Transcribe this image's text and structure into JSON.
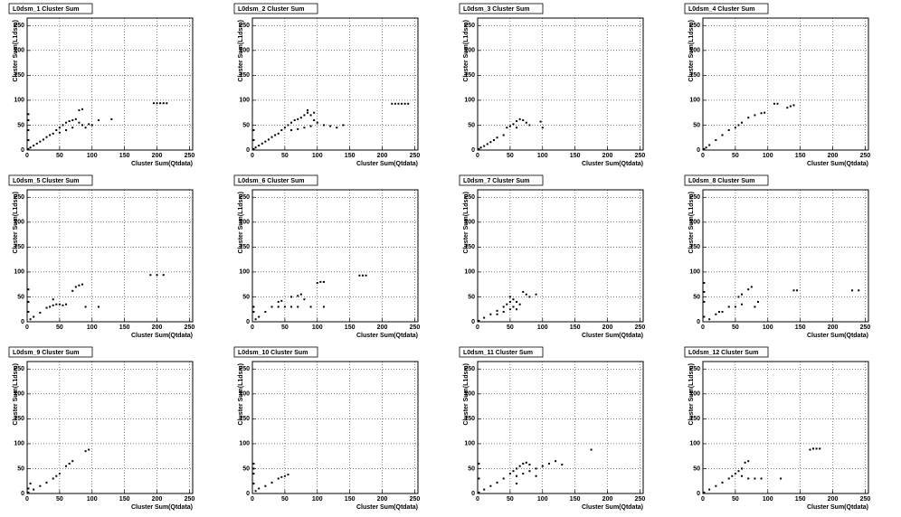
{
  "chart_data": [
    {
      "type": "scatter",
      "title": "L0dsm_1 Cluster Sum",
      "x_label": "Cluster Sum(Qtdata)",
      "y_label": "Cluster Sum(L1dsm)",
      "color": "#000000",
      "grid": true,
      "xlim": [
        0,
        255
      ],
      "ylim": [
        0,
        265
      ],
      "xticks": [
        0,
        50,
        100,
        150,
        200,
        250
      ],
      "yticks": [
        0,
        50,
        100,
        150,
        200,
        250
      ],
      "x": [
        2,
        5,
        10,
        15,
        20,
        25,
        30,
        35,
        40,
        2,
        2,
        2,
        2,
        45,
        50,
        55,
        60,
        65,
        70,
        75,
        80,
        85,
        90,
        60,
        70,
        50,
        95,
        100,
        80,
        85,
        110,
        130,
        195,
        200,
        205,
        210,
        215
      ],
      "values": [
        2,
        5,
        9,
        13,
        17,
        21,
        26,
        30,
        33,
        20,
        40,
        60,
        72,
        40,
        45,
        50,
        55,
        58,
        60,
        62,
        55,
        50,
        45,
        40,
        45,
        35,
        52,
        50,
        80,
        82,
        60,
        62,
        94,
        94,
        94,
        94,
        94
      ]
    },
    {
      "type": "scatter",
      "title": "L0dsm_2 Cluster Sum",
      "x_label": "Cluster Sum(Qtdata)",
      "y_label": "Cluster Sum(L1dsm)",
      "color": "#000000",
      "grid": true,
      "xlim": [
        0,
        255
      ],
      "ylim": [
        0,
        265
      ],
      "xticks": [
        0,
        50,
        100,
        150,
        200,
        250
      ],
      "yticks": [
        0,
        50,
        100,
        150,
        200,
        250
      ],
      "x": [
        2,
        5,
        10,
        15,
        20,
        25,
        30,
        35,
        40,
        2,
        2,
        45,
        50,
        55,
        60,
        65,
        70,
        75,
        80,
        85,
        90,
        95,
        100,
        110,
        120,
        130,
        140,
        60,
        70,
        80,
        90,
        85,
        95,
        215,
        220,
        225,
        230,
        235,
        240
      ],
      "values": [
        2,
        5,
        9,
        13,
        17,
        21,
        26,
        30,
        33,
        20,
        40,
        40,
        45,
        50,
        55,
        60,
        62,
        65,
        70,
        75,
        70,
        60,
        55,
        50,
        48,
        45,
        50,
        40,
        42,
        45,
        48,
        80,
        75,
        93,
        93,
        93,
        93,
        93,
        93
      ]
    },
    {
      "type": "scatter",
      "title": "L0dsm_3 Cluster Sum",
      "x_label": "Cluster Sum(Qtdata)",
      "y_label": "Cluster Sum(L1dsm)",
      "color": "#000000",
      "grid": true,
      "xlim": [
        0,
        255
      ],
      "ylim": [
        0,
        265
      ],
      "xticks": [
        0,
        50,
        100,
        150,
        200,
        250
      ],
      "yticks": [
        0,
        50,
        100,
        150,
        200,
        250
      ],
      "x": [
        2,
        5,
        10,
        15,
        20,
        25,
        30,
        40,
        45,
        50,
        55,
        60,
        65,
        70,
        75,
        60,
        80,
        100,
        97
      ],
      "values": [
        2,
        5,
        8,
        12,
        16,
        20,
        25,
        30,
        45,
        48,
        52,
        58,
        62,
        60,
        55,
        45,
        50,
        45,
        57
      ]
    },
    {
      "type": "scatter",
      "title": "L0dsm_4 Cluster Sum",
      "x_label": "Cluster Sum(Qtdata)",
      "y_label": "Cluster Sum(L1dsm)",
      "color": "#000000",
      "grid": true,
      "xlim": [
        0,
        255
      ],
      "ylim": [
        0,
        265
      ],
      "xticks": [
        0,
        50,
        100,
        150,
        200,
        250
      ],
      "yticks": [
        0,
        50,
        100,
        150,
        200,
        250
      ],
      "x": [
        2,
        5,
        10,
        20,
        30,
        40,
        50,
        55,
        60,
        70,
        80,
        90,
        95,
        110,
        115,
        130,
        135,
        140
      ],
      "values": [
        2,
        5,
        10,
        20,
        30,
        40,
        45,
        50,
        55,
        65,
        70,
        74,
        75,
        93,
        93,
        85,
        88,
        90
      ]
    },
    {
      "type": "scatter",
      "title": "L0dsm_5 Cluster Sum",
      "x_label": "Cluster Sum(Qtdata)",
      "y_label": "Cluster Sum(L1dsm)",
      "color": "#000000",
      "grid": true,
      "xlim": [
        0,
        255
      ],
      "ylim": [
        0,
        265
      ],
      "xticks": [
        0,
        50,
        100,
        150,
        200,
        250
      ],
      "yticks": [
        0,
        50,
        100,
        150,
        200,
        250
      ],
      "x": [
        2,
        2,
        2,
        5,
        10,
        20,
        30,
        35,
        40,
        45,
        50,
        55,
        40,
        60,
        70,
        75,
        80,
        85,
        90,
        110,
        190,
        200,
        210
      ],
      "values": [
        20,
        40,
        65,
        5,
        10,
        18,
        28,
        30,
        33,
        35,
        35,
        33,
        45,
        35,
        62,
        70,
        73,
        75,
        30,
        30,
        94,
        94,
        94
      ]
    },
    {
      "type": "scatter",
      "title": "L0dsm_6 Cluster Sum",
      "x_label": "Cluster Sum(Qtdata)",
      "y_label": "Cluster Sum(L1dsm)",
      "color": "#000000",
      "grid": true,
      "xlim": [
        0,
        255
      ],
      "ylim": [
        0,
        265
      ],
      "xticks": [
        0,
        50,
        100,
        150,
        200,
        250
      ],
      "yticks": [
        0,
        50,
        100,
        150,
        200,
        250
      ],
      "x": [
        5,
        10,
        20,
        30,
        40,
        45,
        40,
        50,
        60,
        70,
        60,
        70,
        75,
        80,
        90,
        100,
        105,
        110,
        165,
        170,
        175,
        2,
        2,
        110
      ],
      "values": [
        5,
        10,
        20,
        30,
        40,
        42,
        30,
        30,
        30,
        30,
        50,
        52,
        55,
        45,
        30,
        78,
        80,
        80,
        93,
        93,
        93,
        30,
        20,
        30
      ]
    },
    {
      "type": "scatter",
      "title": "L0dsm_7 Cluster Sum",
      "x_label": "Cluster Sum(Qtdata)",
      "y_label": "Cluster Sum(L1dsm)",
      "color": "#000000",
      "grid": true,
      "xlim": [
        0,
        255
      ],
      "ylim": [
        0,
        265
      ],
      "xticks": [
        0,
        50,
        100,
        150,
        200,
        250
      ],
      "yticks": [
        0,
        50,
        100,
        150,
        200,
        250
      ],
      "x": [
        2,
        10,
        20,
        30,
        40,
        45,
        50,
        55,
        30,
        40,
        50,
        55,
        60,
        65,
        70,
        75,
        80,
        90,
        50,
        60
      ],
      "values": [
        2,
        8,
        15,
        22,
        30,
        35,
        40,
        45,
        15,
        20,
        25,
        30,
        40,
        35,
        60,
        55,
        50,
        55,
        50,
        25
      ]
    },
    {
      "type": "scatter",
      "title": "L0dsm_8 Cluster Sum",
      "x_label": "Cluster Sum(Qtdata)",
      "y_label": "Cluster Sum(L1dsm)",
      "color": "#000000",
      "grid": true,
      "xlim": [
        0,
        255
      ],
      "ylim": [
        0,
        265
      ],
      "xticks": [
        0,
        50,
        100,
        150,
        200,
        250
      ],
      "yticks": [
        0,
        50,
        100,
        150,
        200,
        250
      ],
      "x": [
        2,
        2,
        2,
        2,
        10,
        20,
        25,
        30,
        40,
        50,
        60,
        55,
        60,
        70,
        75,
        80,
        85,
        140,
        145,
        230,
        240
      ],
      "values": [
        10,
        40,
        60,
        78,
        5,
        15,
        20,
        20,
        30,
        30,
        35,
        50,
        55,
        65,
        70,
        30,
        40,
        63,
        63,
        63,
        63
      ]
    },
    {
      "type": "scatter",
      "title": "L0dsm_9 Cluster Sum",
      "x_label": "Cluster Sum(Qtdata)",
      "y_label": "Cluster Sum(L1dsm)",
      "color": "#000000",
      "grid": true,
      "xlim": [
        0,
        255
      ],
      "ylim": [
        0,
        265
      ],
      "xticks": [
        0,
        50,
        100,
        150,
        200,
        250
      ],
      "yticks": [
        0,
        50,
        100,
        150,
        200,
        250
      ],
      "x": [
        2,
        10,
        20,
        30,
        40,
        45,
        50,
        60,
        65,
        70,
        90,
        95,
        2,
        5
      ],
      "values": [
        2,
        8,
        15,
        22,
        30,
        35,
        40,
        55,
        60,
        65,
        85,
        88,
        10,
        20
      ]
    },
    {
      "type": "scatter",
      "title": "L0dsm_10 Cluster Sum",
      "x_label": "Cluster Sum(Qtdata)",
      "y_label": "Cluster Sum(L1dsm)",
      "color": "#000000",
      "grid": true,
      "xlim": [
        0,
        255
      ],
      "ylim": [
        0,
        265
      ],
      "xticks": [
        0,
        50,
        100,
        150,
        200,
        250
      ],
      "yticks": [
        0,
        50,
        100,
        150,
        200,
        250
      ],
      "x": [
        2,
        2,
        2,
        5,
        10,
        20,
        30,
        40,
        45,
        50,
        55,
        2
      ],
      "values": [
        60,
        50,
        40,
        5,
        10,
        15,
        22,
        30,
        33,
        35,
        38,
        20
      ]
    },
    {
      "type": "scatter",
      "title": "L0dsm_11 Cluster Sum",
      "x_label": "Cluster Sum(Qtdata)",
      "y_label": "Cluster Sum(L1dsm)",
      "color": "#000000",
      "grid": true,
      "xlim": [
        0,
        255
      ],
      "ylim": [
        0,
        265
      ],
      "xticks": [
        0,
        50,
        100,
        150,
        200,
        250
      ],
      "yticks": [
        0,
        50,
        100,
        150,
        200,
        250
      ],
      "x": [
        2,
        2,
        2,
        10,
        20,
        30,
        40,
        50,
        55,
        60,
        65,
        70,
        75,
        80,
        60,
        70,
        80,
        90,
        100,
        110,
        120,
        130,
        175,
        60,
        90
      ],
      "values": [
        2,
        30,
        60,
        8,
        15,
        22,
        30,
        40,
        45,
        50,
        55,
        60,
        62,
        58,
        35,
        40,
        45,
        50,
        55,
        60,
        65,
        58,
        88,
        20,
        35
      ]
    },
    {
      "type": "scatter",
      "title": "L0dsm_12 Cluster Sum",
      "x_label": "Cluster Sum(Qtdata)",
      "y_label": "Cluster Sum(L1dsm)",
      "color": "#000000",
      "grid": true,
      "xlim": [
        0,
        255
      ],
      "ylim": [
        0,
        265
      ],
      "xticks": [
        0,
        50,
        100,
        150,
        200,
        250
      ],
      "yticks": [
        0,
        50,
        100,
        150,
        200,
        250
      ],
      "x": [
        2,
        10,
        20,
        30,
        40,
        45,
        50,
        55,
        60,
        65,
        70,
        60,
        70,
        80,
        90,
        120,
        165,
        170,
        175,
        180
      ],
      "values": [
        2,
        8,
        15,
        22,
        30,
        35,
        40,
        45,
        50,
        62,
        65,
        35,
        30,
        30,
        30,
        30,
        88,
        90,
        90,
        90
      ]
    }
  ]
}
